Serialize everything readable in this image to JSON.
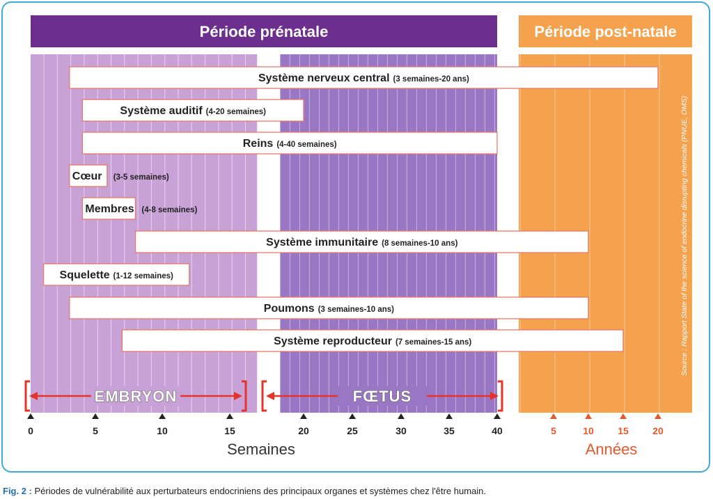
{
  "colors": {
    "embryo_band": "#c8a2d6",
    "fetus_band": "#9a77c4",
    "header_prenatal": "#6d2f8e",
    "postnatal": "#f4a24e",
    "bar_border": "#e8786a",
    "phase_arrow": "#e63329",
    "week_label": "#222222",
    "year_label": "#e2592d",
    "frame": "#3fa9d8",
    "caption_accent": "#1f6fb2"
  },
  "chart_data": {
    "type": "timeline",
    "headers": {
      "prenatal": "Période prénatale",
      "postnatal": "Période post-natale"
    },
    "phases": [
      {
        "name": "EMBRYON",
        "start": 0,
        "end": 16,
        "unit": "semaines"
      },
      {
        "name": "FŒTUS",
        "start": 17,
        "end": 40,
        "unit": "semaines"
      }
    ],
    "axes": {
      "weeks": {
        "ticks": [
          0,
          5,
          10,
          15,
          20,
          25,
          30,
          35,
          40
        ],
        "label": "Semaines"
      },
      "years": {
        "ticks": [
          5,
          10,
          15,
          20
        ],
        "label": "Années"
      }
    },
    "bars": [
      {
        "name": "Système nerveux central",
        "range_text": "(3 semaines-20 ans)",
        "start": {
          "unit": "weeks",
          "value": 3
        },
        "end": {
          "unit": "years",
          "value": 20
        }
      },
      {
        "name": "Système auditif",
        "range_text": "(4-20 semaines)",
        "start": {
          "unit": "weeks",
          "value": 4
        },
        "end": {
          "unit": "weeks",
          "value": 20
        }
      },
      {
        "name": "Reins",
        "range_text": "(4-40 semaines)",
        "start": {
          "unit": "weeks",
          "value": 4
        },
        "end": {
          "unit": "weeks",
          "value": 40
        }
      },
      {
        "name": "Cœur",
        "range_text": "(3-5 semaines)",
        "start": {
          "unit": "weeks",
          "value": 3
        },
        "end": {
          "unit": "weeks",
          "value": 5
        }
      },
      {
        "name": "Membres",
        "range_text": "(4-8 semaines)",
        "start": {
          "unit": "weeks",
          "value": 4
        },
        "end": {
          "unit": "weeks",
          "value": 8
        }
      },
      {
        "name": "Système immunitaire",
        "range_text": "(8 semaines-10 ans)",
        "start": {
          "unit": "weeks",
          "value": 8
        },
        "end": {
          "unit": "years",
          "value": 10
        }
      },
      {
        "name": "Squelette",
        "range_text": "(1-12 semaines)",
        "start": {
          "unit": "weeks",
          "value": 1
        },
        "end": {
          "unit": "weeks",
          "value": 12
        }
      },
      {
        "name": "Poumons",
        "range_text": "(3 semaines-10 ans)",
        "start": {
          "unit": "weeks",
          "value": 3
        },
        "end": {
          "unit": "years",
          "value": 10
        }
      },
      {
        "name": "Système reproducteur",
        "range_text": "(7 semaines-15 ans)",
        "start": {
          "unit": "weeks",
          "value": 7
        },
        "end": {
          "unit": "years",
          "value": 15
        }
      }
    ],
    "source": "Source : Rapport State of the science of endocrine disrupting chemicals (PNUE, OMS)"
  },
  "caption": {
    "label": "Fig. 2 :",
    "text": " Périodes de vulnérabilité aux perturbateurs endocriniens des principaux organes et systèmes chez l'être humain."
  }
}
